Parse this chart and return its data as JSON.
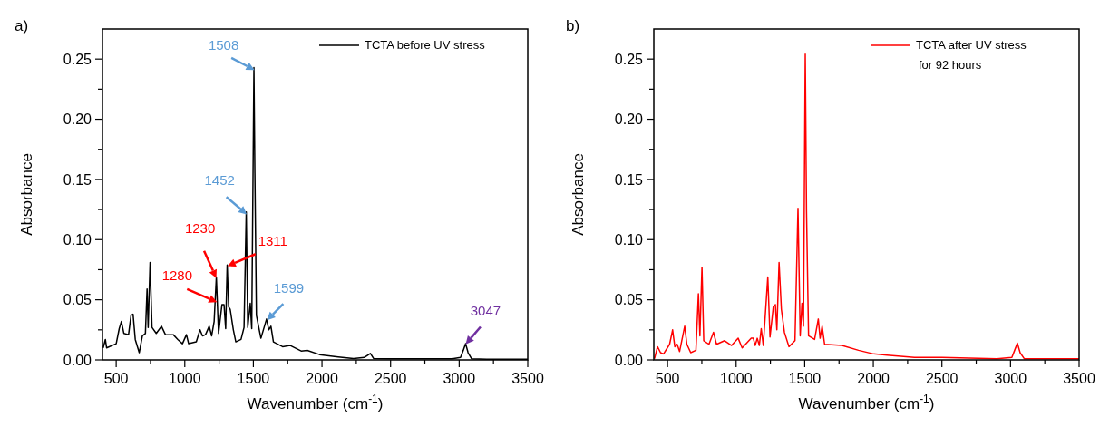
{
  "chart_data": [
    {
      "type": "line",
      "title": "a)",
      "xlabel": "Wavenumber (cm$^{-1}$)",
      "ylabel": "Absorbance",
      "xlim": [
        400,
        3500
      ],
      "ylim": [
        0,
        0.275
      ],
      "xticks": [
        500,
        {
          "value": 750,
          "label": null
        },
        1000,
        {
          "value": 1250,
          "label": null
        },
        1500,
        {
          "value": 1750,
          "label": null
        },
        2000,
        {
          "value": 2250,
          "label": null
        },
        2500,
        {
          "value": 2750,
          "label": null
        },
        3000,
        {
          "value": 3250,
          "label": null
        },
        3500
      ],
      "yticks": [
        {
          "value": 0,
          "label": "0.00"
        },
        {
          "value": 0.025,
          "label": null
        },
        {
          "value": 0.05,
          "label": "0.05"
        },
        {
          "value": 0.075,
          "label": null
        },
        {
          "value": 0.1,
          "label": "0.10"
        },
        {
          "value": 0.125,
          "label": null
        },
        {
          "value": 0.15,
          "label": "0.15"
        },
        {
          "value": 0.175,
          "label": null
        },
        {
          "value": 0.2,
          "label": "0.20"
        },
        {
          "value": 0.225,
          "label": null
        },
        {
          "value": 0.25,
          "label": "0.25"
        }
      ],
      "grid": false,
      "legend": "top right",
      "annotations": [
        {
          "text": "1508",
          "x": 1508,
          "y": 0.241
        },
        {
          "text": "1452",
          "x": 1452,
          "y": 0.121
        },
        {
          "text": "1230",
          "x": 1230,
          "y": 0.068
        },
        {
          "text": "1280",
          "x": 1235,
          "y": 0.048
        },
        {
          "text": "1311",
          "x": 1311,
          "y": 0.078
        },
        {
          "text": "1599",
          "x": 1599,
          "y": 0.033
        },
        {
          "text": "3047",
          "x": 3047,
          "y": 0.013
        }
      ],
      "series": [
        {
          "name": "TCTA before UV stress",
          "color": "#000000",
          "x": [
            405,
            421,
            430,
            500,
            522,
            538,
            556,
            590,
            608,
            623,
            639,
            668,
            691,
            713,
            725,
            733,
            747,
            761,
            792,
            830,
            859,
            916,
            949,
            983,
            1012,
            1028,
            1084,
            1111,
            1129,
            1151,
            1178,
            1196,
            1214,
            1230,
            1246,
            1271,
            1286,
            1298,
            1309,
            1320,
            1331,
            1354,
            1372,
            1410,
            1432,
            1448,
            1459,
            1477,
            1488,
            1500,
            1504,
            1511,
            1522,
            1555,
            1596,
            1612,
            1628,
            1646,
            1713,
            1769,
            1848,
            1893,
            1983,
            2118,
            2230,
            2308,
            2353,
            2376,
            2500,
            2900,
            2950,
            3010,
            3030,
            3047,
            3065,
            3090,
            3200,
            3500
          ],
          "values": [
            0.01,
            0.017,
            0.01,
            0.0135,
            0.026,
            0.032,
            0.022,
            0.021,
            0.037,
            0.038,
            0.017,
            0.006,
            0.02,
            0.022,
            0.059,
            0.027,
            0.081,
            0.027,
            0.022,
            0.028,
            0.021,
            0.021,
            0.017,
            0.0135,
            0.021,
            0.0135,
            0.015,
            0.025,
            0.02,
            0.021,
            0.028,
            0.02,
            0.032,
            0.069,
            0.022,
            0.046,
            0.046,
            0.026,
            0.079,
            0.044,
            0.042,
            0.025,
            0.015,
            0.017,
            0.027,
            0.123,
            0.027,
            0.047,
            0.026,
            0.187,
            0.243,
            0.155,
            0.037,
            0.018,
            0.034,
            0.025,
            0.028,
            0.015,
            0.011,
            0.012,
            0.0074,
            0.0079,
            0.0044,
            0.0025,
            0.0012,
            0.002,
            0.0054,
            0.0012,
            0.001,
            0.001,
            0.001,
            0.002,
            0.008,
            0.0135,
            0.006,
            0.001,
            0.0005,
            0.0005
          ]
        }
      ]
    },
    {
      "type": "line",
      "title": "b)",
      "xlabel": "Wavenumber (cm$^{-1}$)",
      "ylabel": "Absorbance",
      "xlim": [
        400,
        3500
      ],
      "ylim": [
        0,
        0.275
      ],
      "xticks": [
        500,
        {
          "value": 750,
          "label": null
        },
        1000,
        {
          "value": 1250,
          "label": null
        },
        1500,
        {
          "value": 1750,
          "label": null
        },
        2000,
        {
          "value": 2250,
          "label": null
        },
        2500,
        {
          "value": 2750,
          "label": null
        },
        3000,
        {
          "value": 3250,
          "label": null
        },
        3500
      ],
      "yticks": [
        {
          "value": 0,
          "label": "0.00"
        },
        {
          "value": 0.025,
          "label": null
        },
        {
          "value": 0.05,
          "label": "0.05"
        },
        {
          "value": 0.075,
          "label": null
        },
        {
          "value": 0.1,
          "label": "0.10"
        },
        {
          "value": 0.125,
          "label": null
        },
        {
          "value": 0.15,
          "label": "0.15"
        },
        {
          "value": 0.175,
          "label": null
        },
        {
          "value": 0.2,
          "label": "0.20"
        },
        {
          "value": 0.225,
          "label": null
        },
        {
          "value": 0.25,
          "label": "0.25"
        }
      ],
      "grid": false,
      "legend": "top right",
      "series": [
        {
          "name": "TCTA after UV stress\nfor 92 hours",
          "color": "#ff0000",
          "x": [
            405,
            427,
            449,
            471,
            515,
            537,
            553,
            570,
            588,
            625,
            641,
            669,
            707,
            725,
            736,
            751,
            764,
            802,
            835,
            857,
            916,
            967,
            1015,
            1044,
            1110,
            1125,
            1139,
            1154,
            1169,
            1183,
            1198,
            1231,
            1247,
            1271,
            1286,
            1297,
            1313,
            1330,
            1352,
            1385,
            1429,
            1451,
            1467,
            1480,
            1491,
            1504,
            1513,
            1528,
            1572,
            1599,
            1612,
            1627,
            1645,
            1771,
            1892,
            2002,
            2100,
            2300,
            2500,
            2900,
            3010,
            3030,
            3050,
            3070,
            3100,
            3500
          ],
          "values": [
            0.001,
            0.011,
            0.006,
            0.005,
            0.013,
            0.025,
            0.011,
            0.013,
            0.007,
            0.028,
            0.013,
            0.006,
            0.008,
            0.055,
            0.02,
            0.077,
            0.016,
            0.013,
            0.023,
            0.013,
            0.016,
            0.012,
            0.018,
            0.01,
            0.018,
            0.018,
            0.012,
            0.018,
            0.012,
            0.026,
            0.012,
            0.069,
            0.019,
            0.044,
            0.046,
            0.025,
            0.081,
            0.042,
            0.023,
            0.011,
            0.016,
            0.126,
            0.02,
            0.047,
            0.028,
            0.254,
            0.124,
            0.02,
            0.017,
            0.034,
            0.018,
            0.028,
            0.013,
            0.012,
            0.008,
            0.005,
            0.004,
            0.002,
            0.002,
            0.001,
            0.002,
            0.008,
            0.014,
            0.006,
            0.001,
            0.001
          ]
        }
      ]
    }
  ]
}
